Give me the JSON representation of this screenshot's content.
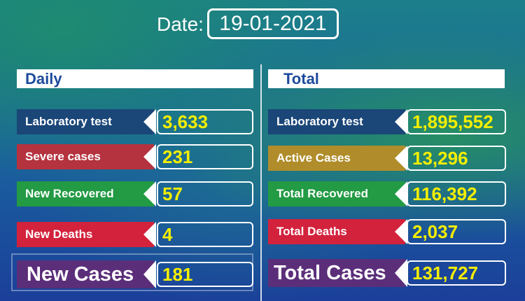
{
  "header": {
    "date_label": "Date:",
    "date_value": "19-01-2021"
  },
  "colors": {
    "navy": "#1a4678",
    "red": "#b5323f",
    "green": "#239a44",
    "bright_red": "#d3223c",
    "purple": "#5b2e7a",
    "gold": "#b08d2a",
    "value_yellow": "#f4ee00"
  },
  "daily": {
    "title": "Daily",
    "items": [
      {
        "label": "Laboratory test",
        "value": "3,633"
      },
      {
        "label": "Severe cases",
        "value": "231"
      },
      {
        "label": "New Recovered",
        "value": "57"
      },
      {
        "label": "New Deaths",
        "value": "4"
      }
    ],
    "total": {
      "label": "New Cases",
      "value": "181"
    }
  },
  "total": {
    "title": "Total",
    "items": [
      {
        "label": "Laboratory test",
        "value": "1,895,552"
      },
      {
        "label": "Active Cases",
        "value": "13,296"
      },
      {
        "label": "Total Recovered",
        "value": "116,392"
      },
      {
        "label": "Total Deaths",
        "value": "2,037"
      }
    ],
    "total": {
      "label": "Total Cases",
      "value": "131,727"
    }
  }
}
